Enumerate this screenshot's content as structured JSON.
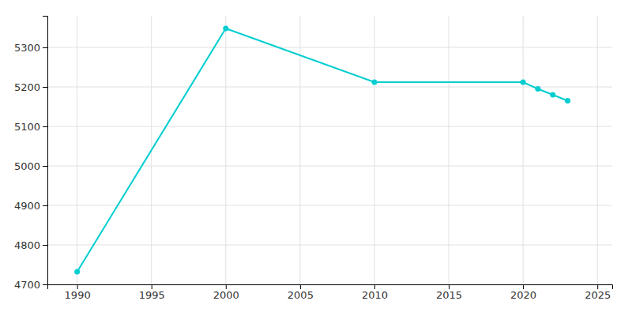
{
  "chart_data": {
    "type": "line",
    "x": [
      1990,
      2000,
      2010,
      2020,
      2021,
      2022,
      2023
    ],
    "values": [
      4732,
      5348,
      5212,
      5212,
      5195,
      5180,
      5165
    ],
    "color": "#00CED1",
    "marker": "circle",
    "xlim": [
      1988,
      2026
    ],
    "ylim": [
      4700,
      5380
    ],
    "xticks": [
      1990,
      1995,
      2000,
      2005,
      2010,
      2015,
      2020,
      2025
    ],
    "yticks": [
      4700,
      4800,
      4900,
      5000,
      5100,
      5200,
      5300
    ],
    "grid": true
  }
}
